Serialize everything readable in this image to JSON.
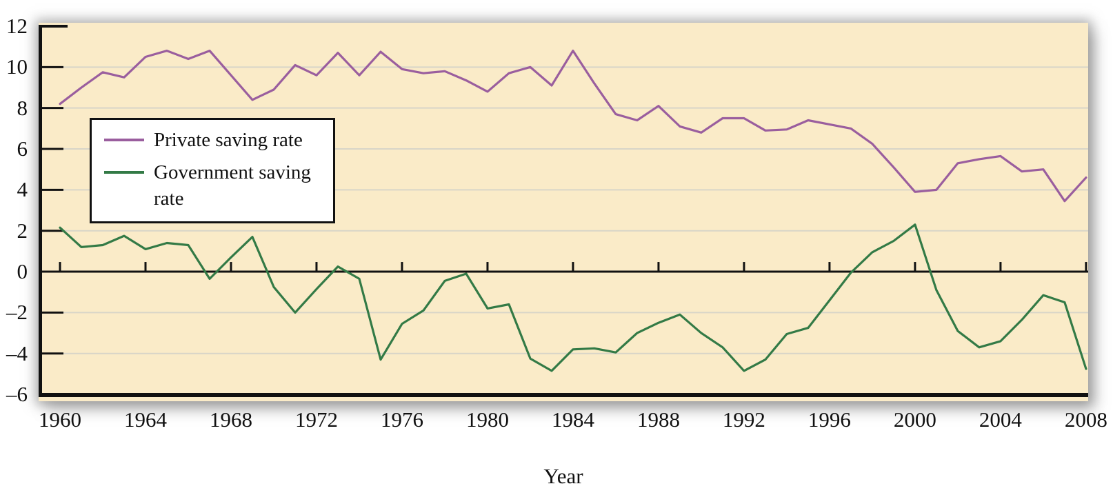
{
  "colors": {
    "plot_bg": "#faebc8",
    "grid": "#d8d5c8",
    "axis": "#111111",
    "text": "#111111",
    "private_line": "#9a5e9e",
    "government_line": "#337a46",
    "legend_bg": "#ffffff",
    "shadow": "#6c6c6c"
  },
  "chart_data": {
    "type": "line",
    "title": "",
    "xlabel": "Year",
    "ylabel": "",
    "xlim": [
      1959,
      2008.1
    ],
    "ylim": [
      -6,
      12
    ],
    "grid": true,
    "legend_position": "upper-left-inside",
    "x_ticks": [
      1960,
      1964,
      1968,
      1972,
      1976,
      1980,
      1984,
      1988,
      1992,
      1996,
      2000,
      2004,
      2008
    ],
    "x_tick_labels": [
      "1960",
      "1964",
      "1968",
      "1972",
      "1976",
      "1980",
      "1984",
      "1988",
      "1992",
      "1996",
      "2000",
      "2004",
      "2008"
    ],
    "y_ticks": [
      12,
      10,
      8,
      6,
      4,
      2,
      0,
      -2,
      -4,
      -6
    ],
    "y_tick_labels": [
      "12",
      "10",
      "8",
      "6",
      "4",
      "2",
      "0",
      "–2",
      "–4",
      "–6"
    ],
    "y_gridlines": [
      10,
      8,
      6,
      4,
      2,
      -2,
      -4
    ],
    "x": [
      1960,
      1961,
      1962,
      1963,
      1964,
      1965,
      1966,
      1967,
      1968,
      1969,
      1970,
      1971,
      1972,
      1973,
      1974,
      1975,
      1976,
      1977,
      1978,
      1979,
      1980,
      1981,
      1982,
      1983,
      1984,
      1985,
      1986,
      1987,
      1988,
      1989,
      1990,
      1991,
      1992,
      1993,
      1994,
      1995,
      1996,
      1997,
      1998,
      1999,
      2000,
      2001,
      2002,
      2003,
      2004,
      2005,
      2006,
      2007,
      2008
    ],
    "series": [
      {
        "name": "Private saving rate",
        "color": "#9a5e9e",
        "values": [
          8.2,
          9.0,
          9.75,
          9.5,
          10.5,
          10.8,
          10.4,
          10.8,
          9.6,
          8.4,
          8.9,
          10.1,
          9.6,
          10.7,
          9.6,
          10.75,
          9.9,
          9.7,
          9.8,
          9.35,
          8.8,
          9.7,
          10.0,
          9.1,
          10.8,
          9.2,
          7.7,
          7.4,
          8.1,
          7.1,
          6.8,
          7.5,
          7.5,
          6.9,
          6.95,
          7.4,
          7.2,
          7.0,
          6.25,
          5.1,
          3.9,
          4.0,
          5.3,
          5.5,
          5.65,
          4.9,
          5.0,
          3.45,
          4.6
        ]
      },
      {
        "name": "Government saving rate",
        "color": "#337a46",
        "values": [
          2.15,
          1.2,
          1.3,
          1.75,
          1.1,
          1.4,
          1.3,
          -0.35,
          0.7,
          1.7,
          -0.75,
          -2.0,
          -0.85,
          0.25,
          -0.35,
          -4.3,
          -2.55,
          -1.9,
          -0.45,
          -0.1,
          -1.8,
          -1.6,
          -4.25,
          -4.85,
          -3.8,
          -3.75,
          -3.95,
          -3.0,
          -2.5,
          -2.1,
          -3.0,
          -3.7,
          -4.85,
          -4.3,
          -3.05,
          -2.75,
          -1.4,
          -0.05,
          0.95,
          1.5,
          2.3,
          -0.9,
          -2.9,
          -3.7,
          -3.4,
          -2.35,
          -1.15,
          -1.5,
          -4.75
        ]
      }
    ]
  }
}
